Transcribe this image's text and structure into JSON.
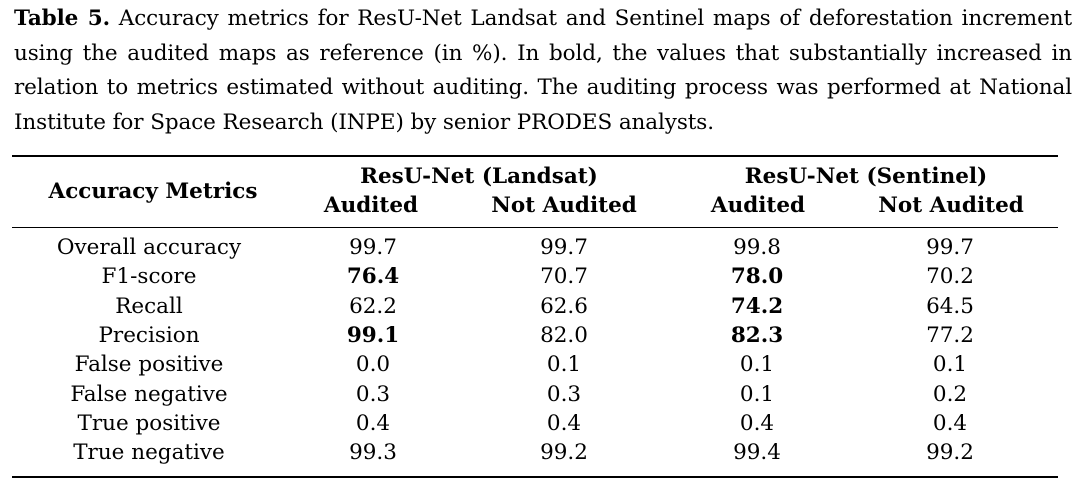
{
  "caption": {
    "label": "Table 5.",
    "text": "Accuracy metrics for ResU-Net Landsat and Sentinel maps of deforestation increment using the audited maps as reference (in %). In bold, the values that substantially increased in relation to metrics estimated without auditing. The auditing process was performed at National Institute for Space Research (INPE) by senior PRODES analysts."
  },
  "table": {
    "row_header": "Accuracy Metrics",
    "groups": [
      "ResU-Net (Landsat)",
      "ResU-Net (Sentinel)"
    ],
    "subheaders": [
      "Audited",
      "Not Audited",
      "Audited",
      "Not Audited"
    ],
    "rows": [
      {
        "metric": "Overall accuracy",
        "values": [
          "99.7",
          "99.7",
          "99.8",
          "99.7"
        ],
        "bold": [
          false,
          false,
          false,
          false
        ]
      },
      {
        "metric": "F1-score",
        "values": [
          "76.4",
          "70.7",
          "78.0",
          "70.2"
        ],
        "bold": [
          true,
          false,
          true,
          false
        ]
      },
      {
        "metric": "Recall",
        "values": [
          "62.2",
          "62.6",
          "74.2",
          "64.5"
        ],
        "bold": [
          false,
          false,
          true,
          false
        ]
      },
      {
        "metric": "Precision",
        "values": [
          "99.1",
          "82.0",
          "82.3",
          "77.2"
        ],
        "bold": [
          true,
          false,
          true,
          false
        ]
      },
      {
        "metric": "False positive",
        "values": [
          "0.0",
          "0.1",
          "0.1",
          "0.1"
        ],
        "bold": [
          false,
          false,
          false,
          false
        ]
      },
      {
        "metric": "False negative",
        "values": [
          "0.3",
          "0.3",
          "0.1",
          "0.2"
        ],
        "bold": [
          false,
          false,
          false,
          false
        ]
      },
      {
        "metric": "True positive",
        "values": [
          "0.4",
          "0.4",
          "0.4",
          "0.4"
        ],
        "bold": [
          false,
          false,
          false,
          false
        ]
      },
      {
        "metric": "True negative",
        "values": [
          "99.3",
          "99.2",
          "99.4",
          "99.2"
        ],
        "bold": [
          false,
          false,
          false,
          false
        ]
      }
    ]
  }
}
